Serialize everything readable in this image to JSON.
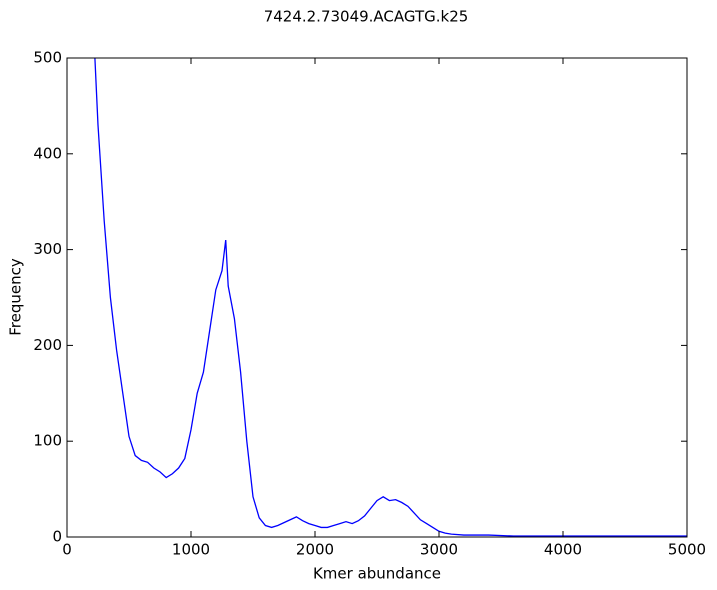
{
  "chart_data": {
    "type": "line",
    "title": "7424.2.73049.ACAGTG.k25",
    "xlabel": "Kmer abundance",
    "ylabel": "Frequency",
    "x": [
      225,
      250,
      300,
      350,
      400,
      450,
      500,
      550,
      600,
      650,
      700,
      750,
      800,
      850,
      900,
      950,
      1000,
      1050,
      1100,
      1150,
      1200,
      1250,
      1280,
      1300,
      1350,
      1400,
      1450,
      1500,
      1550,
      1600,
      1650,
      1700,
      1750,
      1800,
      1850,
      1900,
      1950,
      2000,
      2050,
      2100,
      2150,
      2200,
      2250,
      2300,
      2350,
      2400,
      2450,
      2500,
      2550,
      2600,
      2650,
      2700,
      2750,
      2800,
      2850,
      2900,
      2950,
      3000,
      3050,
      3100,
      3200,
      3400,
      3600,
      3800,
      4000,
      4200,
      4400,
      4600,
      4800,
      5000
    ],
    "values": [
      500,
      430,
      330,
      250,
      195,
      150,
      105,
      85,
      80,
      78,
      72,
      68,
      62,
      66,
      72,
      82,
      112,
      150,
      172,
      215,
      258,
      278,
      310,
      262,
      228,
      172,
      100,
      42,
      20,
      12,
      10,
      12,
      15,
      18,
      21,
      17,
      14,
      12,
      10,
      10,
      12,
      14,
      16,
      14,
      17,
      22,
      30,
      38,
      42,
      38,
      39,
      36,
      32,
      25,
      18,
      14,
      10,
      6,
      4,
      3,
      2,
      2,
      1,
      1,
      1,
      1,
      1,
      1,
      1,
      1
    ],
    "color": "#0000ff",
    "xlim": [
      0,
      5000
    ],
    "xticks": [
      0,
      1000,
      2000,
      3000,
      4000,
      5000
    ],
    "ylim": [
      0,
      500
    ],
    "yticks": [
      0,
      100,
      200,
      300,
      400,
      500
    ]
  }
}
